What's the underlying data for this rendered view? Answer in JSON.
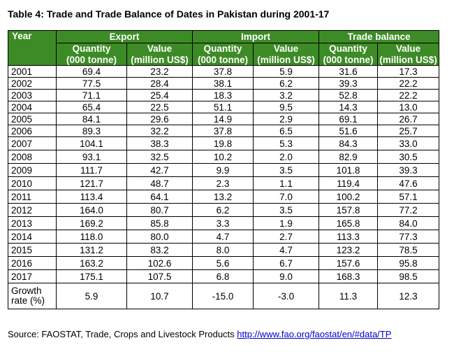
{
  "title": "Table 4: Trade and Trade Balance of Dates in Pakistan during 2001-17",
  "header": {
    "year": "Year",
    "groups": [
      "Export",
      "Import",
      "Trade balance"
    ],
    "sub1": [
      "Quantity",
      "Value",
      "Quantity",
      "Value",
      "Quantity",
      "Value"
    ],
    "sub2": [
      "(000 tonne)",
      "(million US$)",
      "(000 tonne)",
      "(million US$)",
      "(000 tonne)",
      "(million US$)"
    ]
  },
  "rows": [
    {
      "year": "2001",
      "cells": [
        "69.4",
        "23.2",
        "37.8",
        "5.9",
        "31.6",
        "17.3"
      ]
    },
    {
      "year": "2002",
      "cells": [
        "77.5",
        "28.4",
        "38.1",
        "6.2",
        "39.3",
        "22.2"
      ]
    },
    {
      "year": "2003",
      "cells": [
        "71.1",
        "25.4",
        "18.3",
        "3.2",
        "52.8",
        "22.2"
      ]
    },
    {
      "year": "2004",
      "cells": [
        "65.4",
        "22.5",
        "51.1",
        "9.5",
        "14.3",
        "13.0"
      ]
    },
    {
      "year": "2005",
      "cells": [
        "84.1",
        "29.6",
        "14.9",
        "2.9",
        "69.1",
        "26.7"
      ]
    },
    {
      "year": "2006",
      "cells": [
        "89.3",
        "32.2",
        "37.8",
        "6.5",
        "51.6",
        "25.7"
      ]
    },
    {
      "year": "2007",
      "cells": [
        "104.1",
        "38.3",
        "19.8",
        "5.3",
        "84.3",
        "33.0"
      ]
    },
    {
      "year": "2008",
      "cells": [
        "93.1",
        "32.5",
        "10.2",
        "2.0",
        "82.9",
        "30.5"
      ]
    },
    {
      "year": "2009",
      "cells": [
        "111.7",
        "42.7",
        "9.9",
        "3.5",
        "101.8",
        "39.3"
      ]
    },
    {
      "year": "2010",
      "cells": [
        "121.7",
        "48.7",
        "2.3",
        "1.1",
        "119.4",
        "47.6"
      ]
    },
    {
      "year": "2011",
      "cells": [
        "113.4",
        "64.1",
        "13.2",
        "7.0",
        "100.2",
        "57.1"
      ]
    },
    {
      "year": "2012",
      "cells": [
        "164.0",
        "80.7",
        "6.2",
        "3.5",
        "157.8",
        "77.2"
      ]
    },
    {
      "year": "2013",
      "cells": [
        "169.2",
        "85.8",
        "3.3",
        "1.9",
        "165.8",
        "84.0"
      ]
    },
    {
      "year": "2014",
      "cells": [
        "118.0",
        "80.0",
        "4.7",
        "2.7",
        "113.3",
        "77.3"
      ]
    },
    {
      "year": "2015",
      "cells": [
        "131.2",
        "83.2",
        "8.0",
        "4.7",
        "123.2",
        "78.5"
      ]
    },
    {
      "year": "2016",
      "cells": [
        "163.2",
        "102.6",
        "5.6",
        "6.7",
        "157.6",
        "95.8"
      ]
    },
    {
      "year": "2017",
      "cells": [
        "175.1",
        "107.5",
        "6.8",
        "9.0",
        "168.3",
        "98.5"
      ]
    }
  ],
  "growth": {
    "label_line1": "Growth",
    "label_line2": "rate (%)",
    "cells": [
      "5.9",
      "10.7",
      "-15.0",
      "-3.0",
      "11.3",
      "12.3"
    ]
  },
  "source": {
    "prefix": "Source: FAOSTAT, Trade, Crops and Livestock Products ",
    "link_text": "http://www.fao.org/faostat/en/#data/TP"
  },
  "colors": {
    "header_bg": "#3d8b26",
    "header_text": "#ffffff",
    "link": "#0000cc"
  }
}
